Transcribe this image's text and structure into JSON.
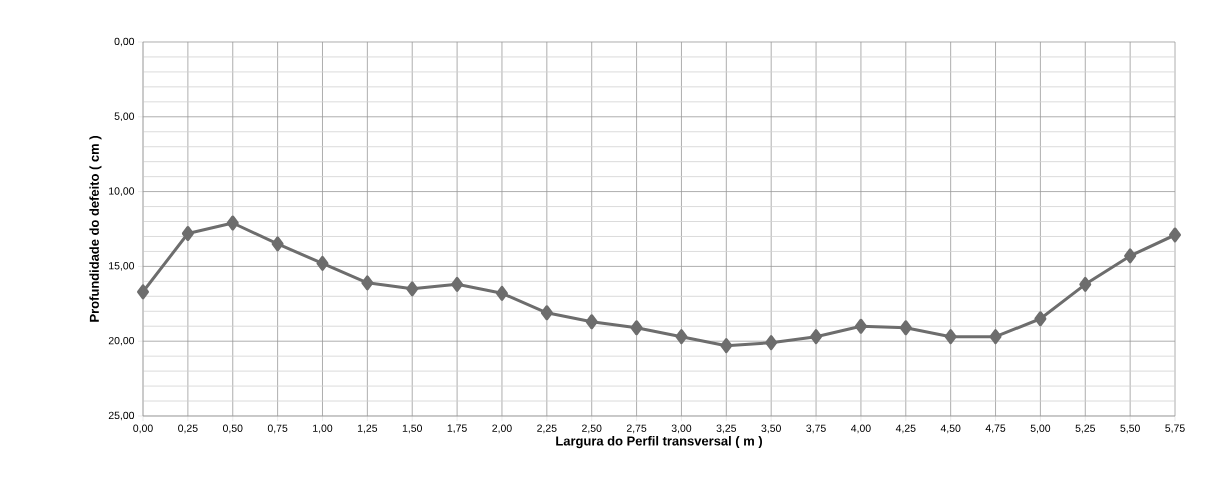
{
  "chart_data": {
    "type": "line",
    "xlabel": "Largura do Perfil transversal ( m )",
    "ylabel": "Profundidade do defeito ( cm )",
    "categories": [
      "0,00",
      "0,25",
      "0,50",
      "0,75",
      "1,00",
      "1,25",
      "1,50",
      "1,75",
      "2,00",
      "2,25",
      "2,50",
      "2,75",
      "3,00",
      "3,25",
      "3,50",
      "3,75",
      "4,00",
      "4,25",
      "4,50",
      "4,75",
      "5,00",
      "5,25",
      "5,50",
      "5,75"
    ],
    "values": [
      16.7,
      12.8,
      12.1,
      13.5,
      14.8,
      16.1,
      16.5,
      16.2,
      16.8,
      18.1,
      18.7,
      19.1,
      19.7,
      20.3,
      20.1,
      19.7,
      19.0,
      19.1,
      19.7,
      19.7,
      18.5,
      16.2,
      14.3,
      12.9
    ],
    "color": "#6d6d6d",
    "ylim": [
      25,
      0
    ],
    "yticks": [
      {
        "value": 0,
        "label": "0,00"
      },
      {
        "value": 5,
        "label": "5,00"
      },
      {
        "value": 10,
        "label": "10,00"
      },
      {
        "value": 15,
        "label": "15,00"
      },
      {
        "value": 20,
        "label": "20,00"
      },
      {
        "value": 25,
        "label": "25,00"
      }
    ],
    "grid": true,
    "marker": "diamond",
    "line_style": "solid"
  }
}
